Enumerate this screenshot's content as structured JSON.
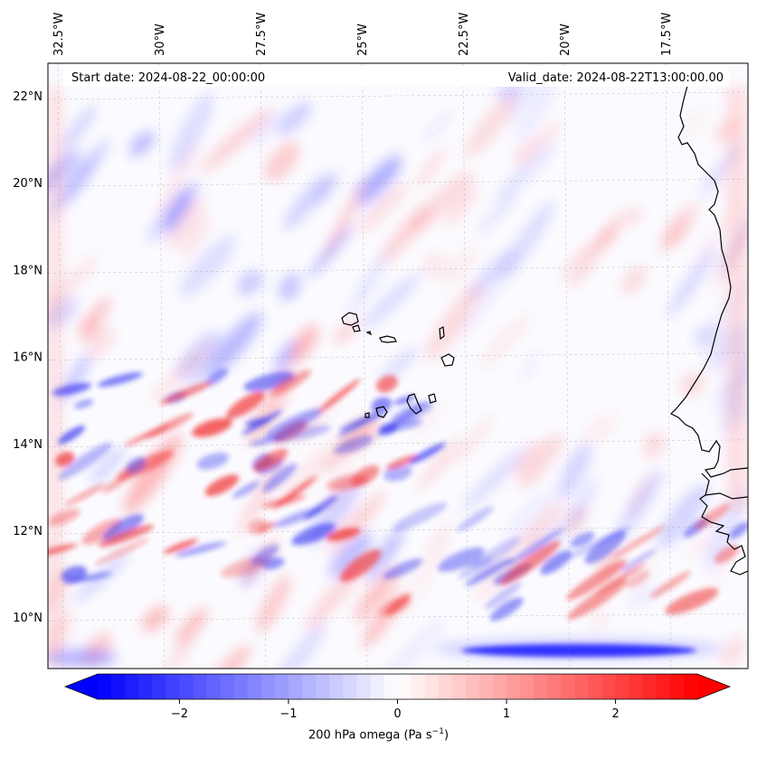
{
  "map": {
    "start_date_text": "Start date: 2024-08-22_00:00:00",
    "valid_date_text": "Valid_date: 2024-08-22T13:00:00.00",
    "lon_ticks": [
      {
        "value": -32.5,
        "label": "32.5°W"
      },
      {
        "value": -30.0,
        "label": "30°W"
      },
      {
        "value": -27.5,
        "label": "27.5°W"
      },
      {
        "value": -25.0,
        "label": "25°W"
      },
      {
        "value": -22.5,
        "label": "22.5°W"
      },
      {
        "value": -20.0,
        "label": "20°W"
      },
      {
        "value": -17.5,
        "label": "17.5°W"
      }
    ],
    "lat_ticks": [
      {
        "value": 22,
        "label": "22°N"
      },
      {
        "value": 20,
        "label": "20°N"
      },
      {
        "value": 18,
        "label": "18°N"
      },
      {
        "value": 16,
        "label": "16°N"
      },
      {
        "value": 14,
        "label": "14°N"
      },
      {
        "value": 12,
        "label": "12°N"
      },
      {
        "value": 10,
        "label": "10°N"
      }
    ]
  },
  "colorbar": {
    "label_main": "200 hPa omega (Pa s",
    "label_sup": "−1",
    "label_end": ")",
    "min": -2.75,
    "max": 2.75,
    "ticks": [
      {
        "value": -2,
        "label": "−2"
      },
      {
        "value": -1,
        "label": "−1"
      },
      {
        "value": 0,
        "label": "0"
      },
      {
        "value": 1,
        "label": "1"
      },
      {
        "value": 2,
        "label": "2"
      }
    ],
    "color_low": "#0000ff",
    "color_mid": "#ffffff",
    "color_high": "#ff0000"
  }
}
